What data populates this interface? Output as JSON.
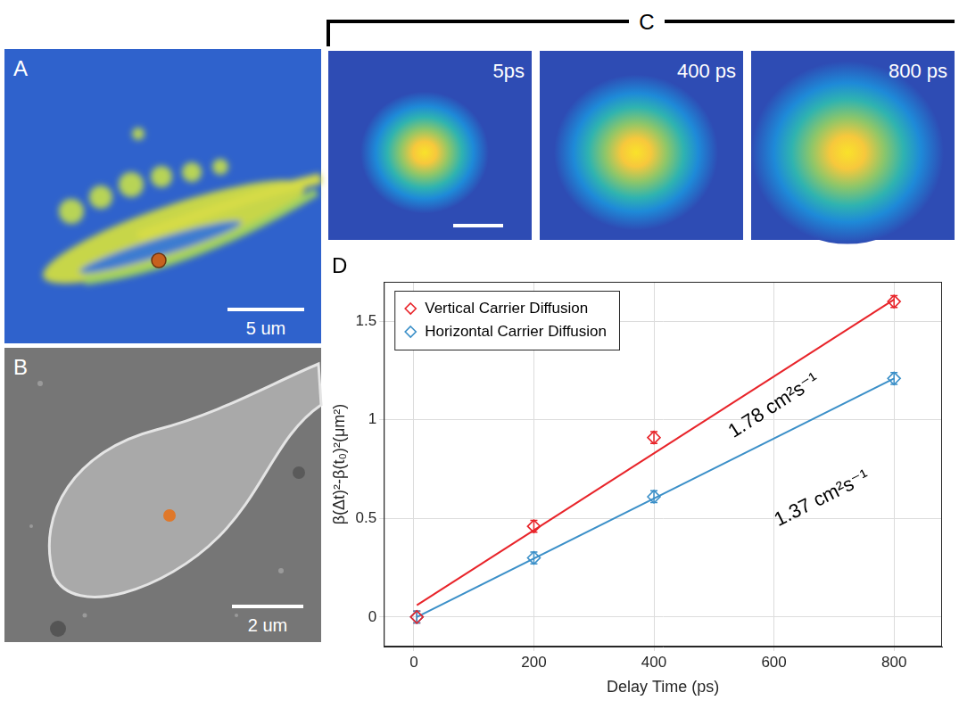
{
  "panels": {
    "A": {
      "label": "A",
      "scale_bar": "5 um"
    },
    "B": {
      "label": "B",
      "scale_bar": "2 um"
    },
    "C": {
      "label": "C",
      "frames": [
        "5ps",
        "400 ps",
        "800 ps"
      ]
    },
    "D": {
      "label": "D"
    }
  },
  "chart_data": {
    "type": "scatter",
    "x_label": "Delay Time (ps)",
    "y_label": "β(Δt)²-β(t₀)²(μm²)",
    "xlim": [
      -50,
      880
    ],
    "xticks": [
      0,
      200,
      400,
      600,
      800
    ],
    "ylim": [
      -0.15,
      1.7
    ],
    "yticks": [
      0,
      0.5,
      1,
      1.5
    ],
    "grid": true,
    "legend": "upper left",
    "series": [
      {
        "name": "Vertical Carrier Diffusion",
        "color": "#e8242a",
        "marker": "diamond",
        "x": [
          5,
          200,
          400,
          800
        ],
        "values": [
          0,
          0.46,
          0.91,
          1.6
        ],
        "errors": [
          0.03,
          0.03,
          0.03,
          0.03
        ],
        "fit": {
          "x": [
            5,
            800
          ],
          "values": [
            0.06,
            1.61
          ]
        }
      },
      {
        "name": "Horizontal Carrier Diffusion",
        "color": "#3a8fc8",
        "marker": "diamond",
        "x": [
          5,
          200,
          400,
          800
        ],
        "values": [
          0,
          0.3,
          0.61,
          1.21
        ],
        "errors": [
          0.03,
          0.03,
          0.03,
          0.03
        ],
        "fit": {
          "x": [
            5,
            800
          ],
          "values": [
            0,
            1.21
          ]
        }
      }
    ],
    "annotations": [
      {
        "text": "1.78 cm²s⁻¹",
        "x": 600,
        "y": 1.07
      },
      {
        "text": "1.37 cm²s⁻¹",
        "x": 680,
        "y": 0.6
      }
    ]
  }
}
